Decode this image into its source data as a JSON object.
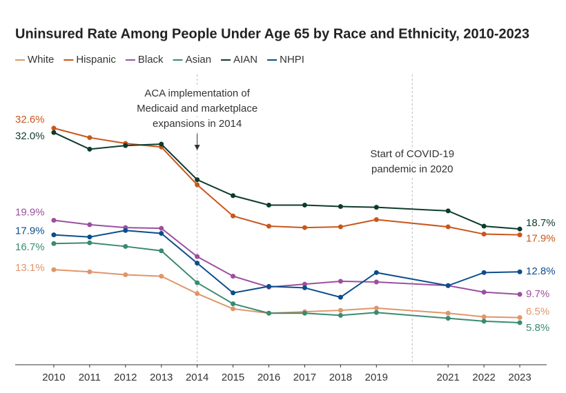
{
  "chart_data": {
    "type": "line",
    "title": "Uninsured Rate Among People Under Age 65 by Race and Ethnicity, 2010-2023",
    "x": [
      2010,
      2011,
      2012,
      2013,
      2014,
      2015,
      2016,
      2017,
      2018,
      2019,
      2021,
      2022,
      2023
    ],
    "xlim": [
      2009,
      2023.75
    ],
    "xticks": [
      2010,
      2011,
      2012,
      2013,
      2014,
      2015,
      2016,
      2017,
      2018,
      2019,
      2021,
      2022,
      2023
    ],
    "ylim": [
      0,
      40
    ],
    "grid": false,
    "legend": "top-left",
    "series": [
      {
        "name": "White",
        "color": "#e0956a",
        "values": [
          13.1,
          12.8,
          12.4,
          12.2,
          9.8,
          7.7,
          7.1,
          7.3,
          7.5,
          7.8,
          7.1,
          6.6,
          6.5
        ],
        "value_labels": [
          "13.1%",
          null,
          null,
          null,
          null,
          null,
          null,
          null,
          null,
          null,
          null,
          null,
          "6.5%"
        ]
      },
      {
        "name": "Hispanic",
        "color": "#c8561c",
        "values": [
          32.6,
          31.3,
          30.5,
          30.0,
          24.8,
          20.5,
          19.1,
          18.9,
          19.0,
          20.0,
          19.0,
          18.0,
          17.9
        ],
        "value_labels": [
          "32.6%",
          null,
          null,
          null,
          null,
          null,
          null,
          null,
          null,
          null,
          null,
          null,
          "17.9%"
        ]
      },
      {
        "name": "Black",
        "color": "#9b4fa0",
        "values": [
          19.9,
          19.3,
          18.9,
          18.8,
          14.9,
          12.2,
          10.7,
          11.1,
          11.5,
          11.4,
          10.9,
          10.0,
          9.7
        ],
        "value_labels": [
          "19.9%",
          null,
          null,
          null,
          null,
          null,
          null,
          null,
          null,
          null,
          null,
          null,
          "9.7%"
        ]
      },
      {
        "name": "Asian",
        "color": "#3a8a70",
        "values": [
          16.7,
          16.8,
          16.3,
          15.7,
          11.3,
          8.4,
          7.1,
          7.1,
          6.8,
          7.2,
          6.4,
          6.0,
          5.8
        ],
        "value_labels": [
          "16.7%",
          null,
          null,
          null,
          null,
          null,
          null,
          null,
          null,
          null,
          null,
          null,
          "5.8%"
        ]
      },
      {
        "name": "AIAN",
        "color": "#0d3b2b",
        "values": [
          32.0,
          29.7,
          30.2,
          30.4,
          25.5,
          23.3,
          22.0,
          22.0,
          21.8,
          21.7,
          21.2,
          19.1,
          18.7
        ],
        "value_labels": [
          "32.0%",
          null,
          null,
          null,
          null,
          null,
          null,
          null,
          null,
          null,
          null,
          null,
          "18.7%"
        ]
      },
      {
        "name": "NHPI",
        "color": "#0b4d8c",
        "values": [
          17.9,
          17.6,
          18.5,
          18.1,
          14.0,
          9.9,
          10.8,
          10.6,
          9.3,
          12.7,
          10.9,
          12.7,
          12.8
        ],
        "value_labels": [
          "17.9%",
          null,
          null,
          null,
          null,
          null,
          null,
          null,
          null,
          null,
          null,
          null,
          "12.8%"
        ]
      }
    ],
    "annotations": [
      {
        "x": 2014,
        "text": [
          "ACA implementation of",
          "Medicaid and marketplace",
          "expansions in 2014"
        ]
      },
      {
        "x": 2020,
        "text": [
          "Start of COVID-19",
          "pandemic in 2020"
        ]
      }
    ]
  }
}
